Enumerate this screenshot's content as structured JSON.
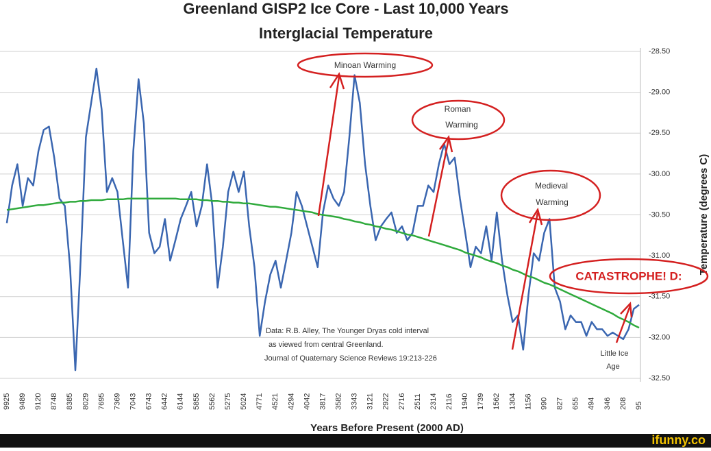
{
  "chart_data": {
    "type": "line",
    "title": "Greenland GISP2 Ice Core - Last 10,000 Years",
    "subtitle": "Interglacial Temperature",
    "x_label": "Years Before Present (2000 AD)",
    "y_label": "Temperature (degrees C)",
    "y_axis_side": "right",
    "grid": true,
    "categories": [
      "9925",
      null,
      null,
      "9489",
      null,
      null,
      "9120",
      null,
      null,
      "8748",
      null,
      null,
      "8385",
      null,
      null,
      "8029",
      null,
      null,
      "7695",
      null,
      null,
      "7369",
      null,
      null,
      "7043",
      null,
      null,
      "6743",
      null,
      null,
      "6442",
      null,
      null,
      "6144",
      null,
      null,
      "5855",
      null,
      null,
      "5562",
      null,
      null,
      "5275",
      null,
      null,
      "5024",
      null,
      null,
      "4771",
      null,
      null,
      "4521",
      null,
      null,
      "4294",
      null,
      null,
      "4042",
      null,
      null,
      "3817",
      null,
      null,
      "3582",
      null,
      null,
      "3343",
      null,
      null,
      "3121",
      null,
      null,
      "2922",
      null,
      null,
      "2716",
      null,
      null,
      "2511",
      null,
      null,
      "2314",
      null,
      null,
      "2116",
      null,
      null,
      "1940",
      null,
      null,
      "1739",
      null,
      null,
      "1562",
      null,
      null,
      "1304",
      null,
      null,
      "1156",
      null,
      null,
      "990",
      null,
      null,
      "827",
      null,
      null,
      "655",
      null,
      null,
      "494",
      null,
      null,
      "346",
      null,
      null,
      "208",
      null,
      null,
      "95"
    ],
    "series": [
      {
        "color": "#3a66b0",
        "values": [
          -30.6,
          -30.14,
          -29.88,
          -30.39,
          -30.05,
          -30.14,
          -29.72,
          -29.46,
          -29.42,
          -29.8,
          -30.3,
          -30.39,
          -31.14,
          -32.4,
          -31.06,
          -29.55,
          -29.13,
          -28.71,
          -29.21,
          -30.22,
          -30.05,
          -30.22,
          -30.81,
          -31.39,
          -29.72,
          -28.84,
          -29.38,
          -30.72,
          -30.97,
          -30.89,
          -30.55,
          -31.06,
          -30.81,
          -30.55,
          -30.39,
          -30.22,
          -30.64,
          -30.39,
          -29.88,
          -30.39,
          -31.39,
          -30.89,
          -30.22,
          -29.97,
          -30.22,
          -29.97,
          -30.64,
          -31.14,
          -31.98,
          -31.56,
          -31.23,
          -31.06,
          -31.39,
          -31.06,
          -30.72,
          -30.22,
          -30.39,
          -30.64,
          -30.89,
          -31.14,
          -30.47,
          -30.14,
          -30.3,
          -30.39,
          -30.22,
          -29.55,
          -28.79,
          -29.13,
          -29.88,
          -30.39,
          -30.81,
          -30.64,
          -30.55,
          -30.47,
          -30.72,
          -30.64,
          -30.81,
          -30.72,
          -30.39,
          -30.39,
          -30.14,
          -30.22,
          -29.88,
          -29.63,
          -29.88,
          -29.8,
          -30.3,
          -30.72,
          -31.14,
          -30.89,
          -30.97,
          -30.64,
          -31.06,
          -30.47,
          -31.06,
          -31.48,
          -31.81,
          -31.73,
          -32.15,
          -31.48,
          -30.97,
          -31.06,
          -30.72,
          -30.55,
          -31.39,
          -31.56,
          -31.9,
          -31.73,
          -31.81,
          -31.81,
          -31.98,
          -31.81,
          -31.9,
          -31.9,
          -31.98,
          -31.94,
          -31.98,
          -32.02,
          -31.9,
          -31.65,
          -31.6
        ]
      },
      {
        "color": "#2faa3c",
        "values": [
          -30.44,
          -30.43,
          -30.42,
          -30.41,
          -30.4,
          -30.39,
          -30.38,
          -30.38,
          -30.37,
          -30.36,
          -30.35,
          -30.35,
          -30.34,
          -30.34,
          -30.33,
          -30.33,
          -30.32,
          -30.32,
          -30.32,
          -30.31,
          -30.31,
          -30.31,
          -30.31,
          -30.3,
          -30.3,
          -30.3,
          -30.3,
          -30.3,
          -30.3,
          -30.3,
          -30.3,
          -30.3,
          -30.3,
          -30.31,
          -30.31,
          -30.31,
          -30.31,
          -30.32,
          -30.32,
          -30.33,
          -30.33,
          -30.34,
          -30.34,
          -30.35,
          -30.35,
          -30.36,
          -30.36,
          -30.37,
          -30.38,
          -30.39,
          -30.4,
          -30.4,
          -30.41,
          -30.42,
          -30.43,
          -30.44,
          -30.45,
          -30.46,
          -30.47,
          -30.49,
          -30.5,
          -30.51,
          -30.52,
          -30.53,
          -30.55,
          -30.56,
          -30.58,
          -30.59,
          -30.61,
          -30.62,
          -30.64,
          -30.65,
          -30.67,
          -30.68,
          -30.7,
          -30.72,
          -30.74,
          -30.75,
          -30.77,
          -30.79,
          -30.81,
          -30.83,
          -30.85,
          -30.87,
          -30.89,
          -30.91,
          -30.93,
          -30.96,
          -30.98,
          -31.0,
          -31.02,
          -31.05,
          -31.07,
          -31.09,
          -31.12,
          -31.14,
          -31.17,
          -31.19,
          -31.22,
          -31.25,
          -31.27,
          -31.3,
          -31.33,
          -31.35,
          -31.38,
          -31.41,
          -31.44,
          -31.47,
          -31.5,
          -31.53,
          -31.56,
          -31.59,
          -31.62,
          -31.65,
          -31.68,
          -31.71,
          -31.75,
          -31.78,
          -31.81,
          -31.85,
          -31.88
        ]
      }
    ],
    "ylim": [
      -32.5,
      -28.5
    ],
    "yticks": [
      {
        "value": -28.5,
        "label": "-28.50"
      },
      {
        "value": -29,
        "label": "-29.00"
      },
      {
        "value": -29.5,
        "label": "-29.50"
      },
      {
        "value": -30,
        "label": "-30.00"
      },
      {
        "value": -30.5,
        "label": "-30.50"
      },
      {
        "value": -31,
        "label": "-31.00"
      },
      {
        "value": -31.5,
        "label": "-31.50"
      },
      {
        "value": -32,
        "label": "-32.00"
      },
      {
        "value": -32.5,
        "label": "-32.50"
      }
    ],
    "annotations": [
      "Minoan Warming",
      "Roman",
      "Warming",
      "Medieval",
      "Warming",
      "CATASTROPHE! D:",
      "Little Ice",
      "Age"
    ],
    "note": [
      "Data: R.B. Alley,  The Younger Dryas cold interval",
      "as viewed from central Greenland.",
      "Journal of Quaternary  Science Reviews 19:213-226"
    ],
    "watermark": "ifunny.co"
  }
}
